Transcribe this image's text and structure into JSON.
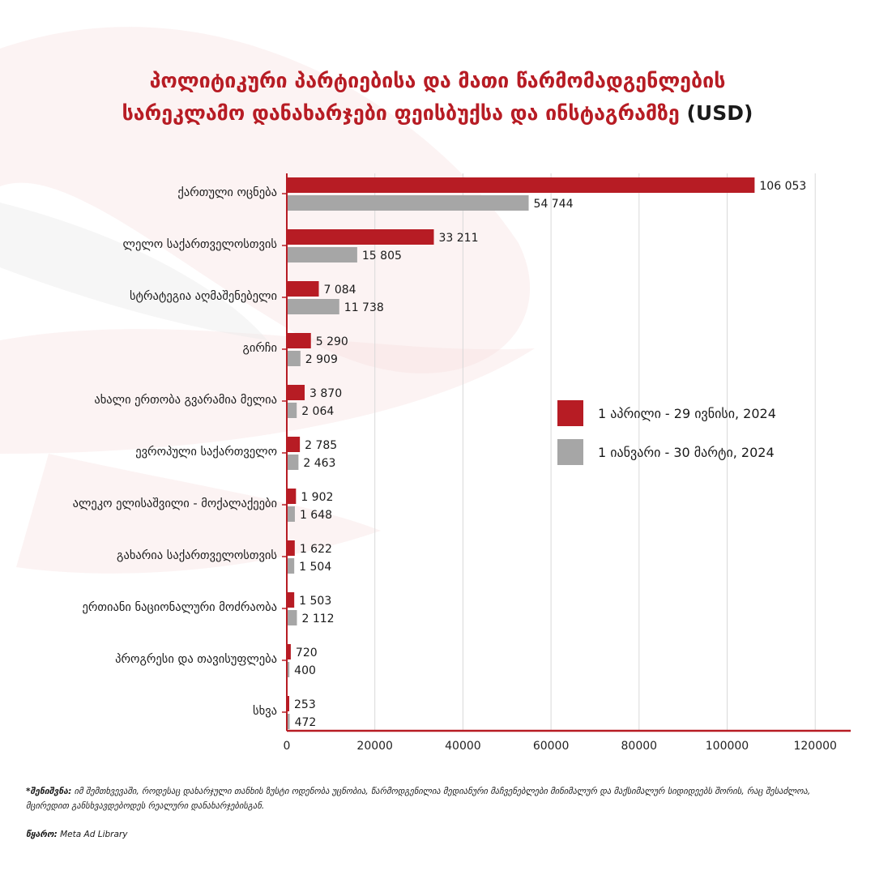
{
  "title": {
    "line1": "პოლიტიკური პარტიებისა და მათი წარმომადგენლების",
    "line2": "სარეკლამო დანახარჯები ფეისბუქსა და ინსტაგრამზე",
    "unit": "(USD)"
  },
  "colors": {
    "accent": "#b71c24",
    "secondary": "#a6a6a6",
    "grid": "#d9d9d9"
  },
  "chart_data": {
    "type": "bar",
    "orientation": "horizontal",
    "categories": [
      "ქართული ოცნება",
      "ლელო საქართველოსთვის",
      "სტრატეგია აღმაშენებელი",
      "გირჩი",
      "ახალი ერთობა გვარამია მელია",
      "ევროპული საქართველო",
      "ალეკო ელისაშვილი - მოქალაქეები",
      "გახარია საქართველოსთვის",
      "ერთიანი ნაციონალური მოძრაობა",
      "პროგრესი და თავისუფლება",
      "სხვა"
    ],
    "series": [
      {
        "name": "1 აპრილი - 29 ივნისი, 2024",
        "color": "#b71c24",
        "values": [
          106053,
          33211,
          7084,
          5290,
          3870,
          2785,
          1902,
          1622,
          1503,
          720,
          253
        ],
        "labels": [
          "106 053",
          "33 211",
          "7 084",
          "5 290",
          "3 870",
          "2 785",
          "1 902",
          "1 622",
          "1 503",
          "720",
          "253"
        ]
      },
      {
        "name": "1 იანვარი - 30 მარტი, 2024",
        "color": "#a6a6a6",
        "values": [
          54744,
          15805,
          11738,
          2909,
          2064,
          2463,
          1648,
          1504,
          2112,
          400,
          472
        ],
        "labels": [
          "54 744",
          "15 805",
          "11 738",
          "2 909",
          "2 064",
          "2 463",
          "1 648",
          "1 504",
          "2 112",
          "400",
          "472"
        ]
      }
    ],
    "xlim": [
      0,
      125000
    ],
    "xticks": [
      0,
      20000,
      40000,
      60000,
      80000,
      100000,
      120000
    ],
    "xtick_labels": [
      "0",
      "20000",
      "40000",
      "60000",
      "80000",
      "100000",
      "120000"
    ],
    "grid": true,
    "legend": "right"
  },
  "legend": {
    "items": [
      {
        "label": "1 აპრილი - 29 ივნისი, 2024",
        "color": "#b71c24"
      },
      {
        "label": "1 იანვარი - 30 მარტი, 2024",
        "color": "#a6a6a6"
      }
    ]
  },
  "note": {
    "label": "*შენიშვნა:",
    "text": "იმ შემთხვევაში, როდესაც დახარჯული თანხის ზუსტი ოდენობა უცნობია, წარმოდგენილია მედიანური მაჩვენებლები მინიმალურ და მაქსიმალურ სიდიდეებს შორის, რაც შესაძლოა, მცირედით განსხვავდებოდეს რეალური დანახარჯებისგან."
  },
  "source": {
    "label": "წყარო:",
    "text": "Meta Ad Library"
  }
}
